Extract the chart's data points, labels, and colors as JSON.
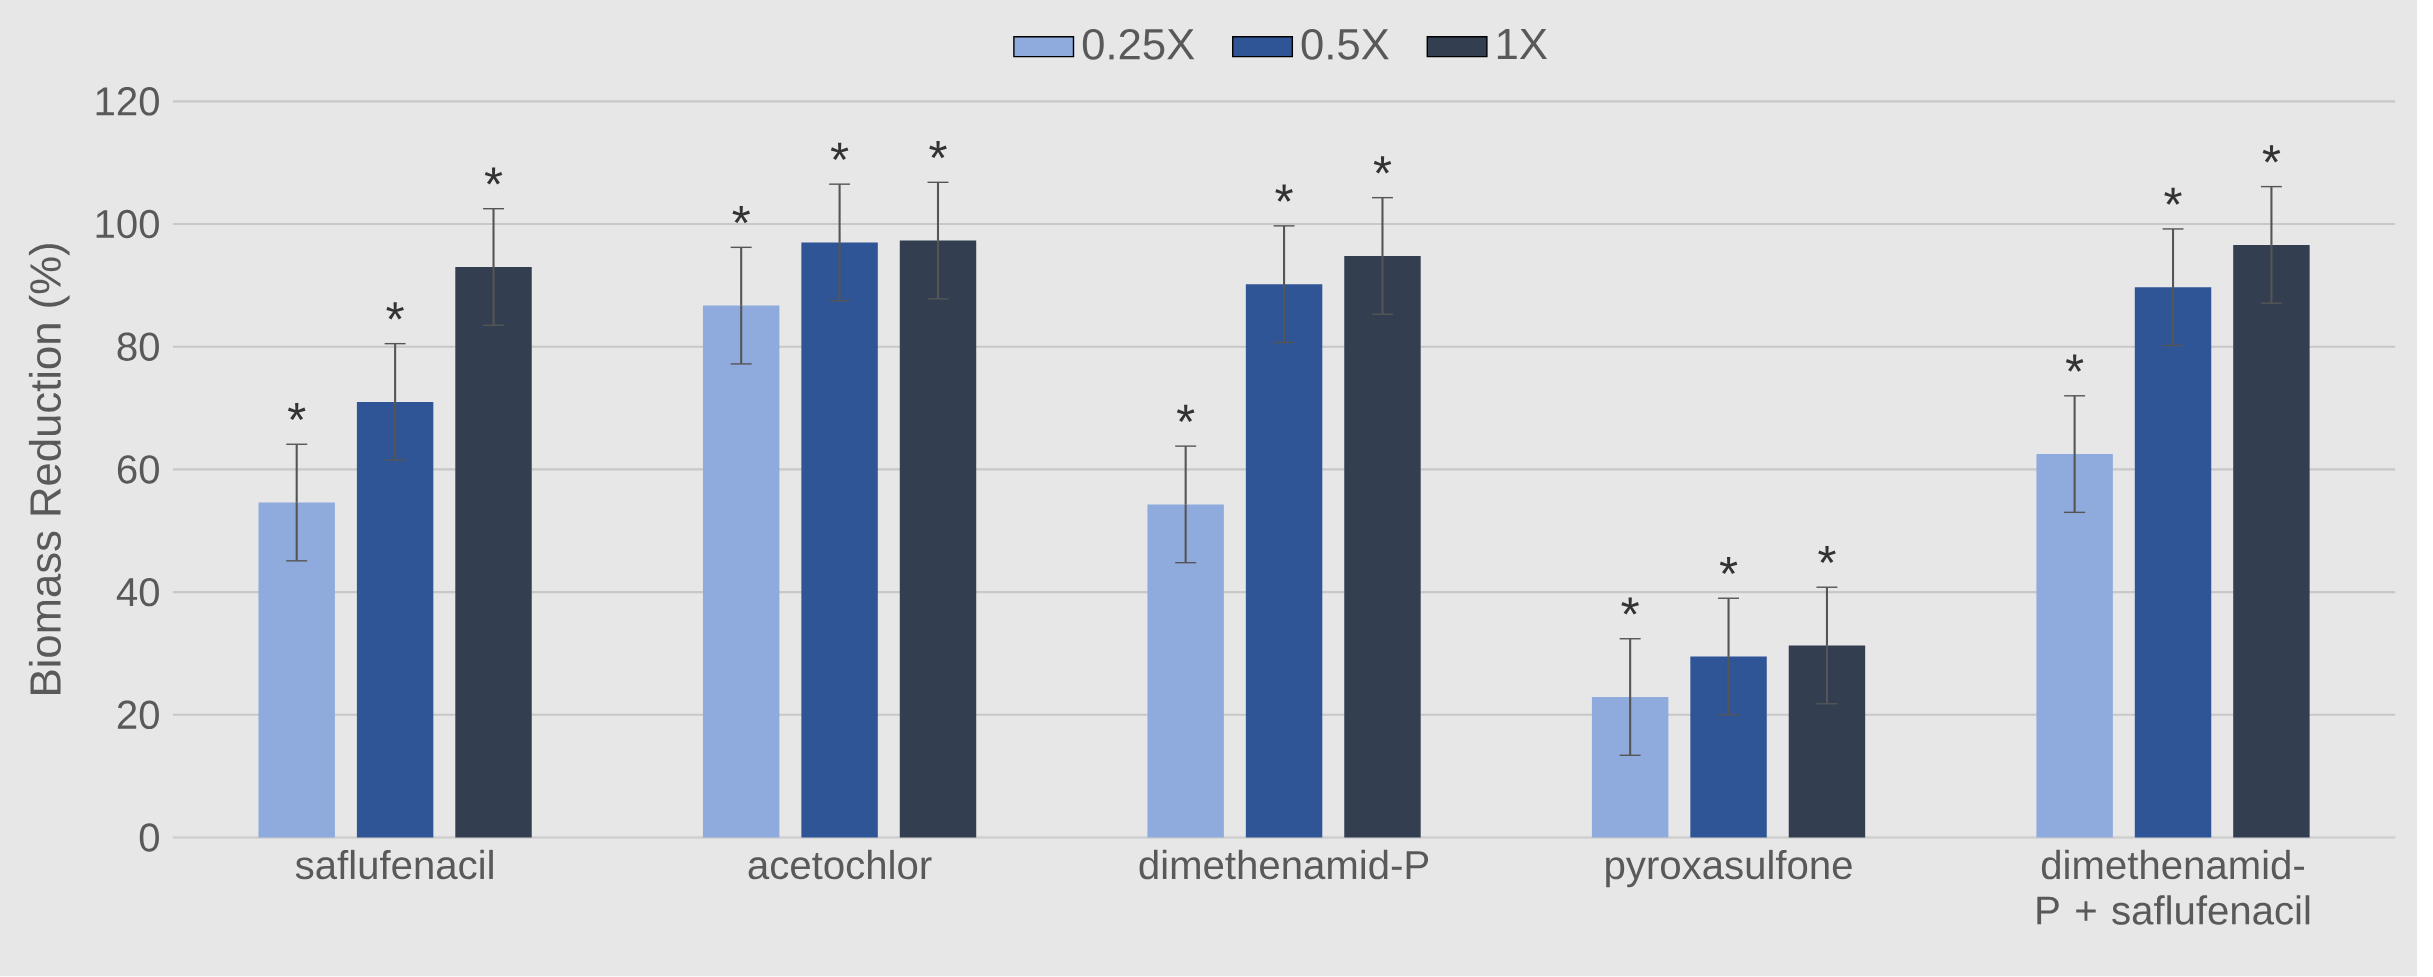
{
  "chart_data": {
    "type": "bar",
    "ylabel": "Biomass Reduction (%)",
    "categories": [
      "saflufenacil",
      "acetochlor",
      "dimethenamid-P",
      "pyroxasulfone",
      "dimethenamid-P + saflufenacil"
    ],
    "series": [
      {
        "name": "0.25X",
        "color": "#8faadc",
        "values": [
          54.6,
          86.7,
          54.3,
          22.9,
          62.5
        ],
        "errors": [
          9.5,
          9.5,
          9.5,
          9.5,
          9.5
        ],
        "value_labels": [
          "*",
          "*",
          "*",
          "*",
          "*"
        ]
      },
      {
        "name": "0.5X",
        "color": "#2f5597",
        "values": [
          71.0,
          97.0,
          90.2,
          29.5,
          89.7
        ],
        "errors": [
          9.5,
          9.5,
          9.5,
          9.5,
          9.5
        ],
        "value_labels": [
          "*",
          "*",
          "*",
          "*",
          "*"
        ]
      },
      {
        "name": "1X",
        "color": "#333f50",
        "values": [
          93.0,
          97.3,
          94.8,
          31.3,
          96.6
        ],
        "errors": [
          9.5,
          9.5,
          9.5,
          9.5,
          9.5
        ],
        "value_labels": [
          "*",
          "*",
          "*",
          "*",
          "*"
        ]
      }
    ],
    "ylim": [
      0,
      120
    ],
    "yticks": [
      0,
      20,
      40,
      60,
      80,
      100,
      120
    ],
    "grid": "y",
    "legend": "top"
  }
}
